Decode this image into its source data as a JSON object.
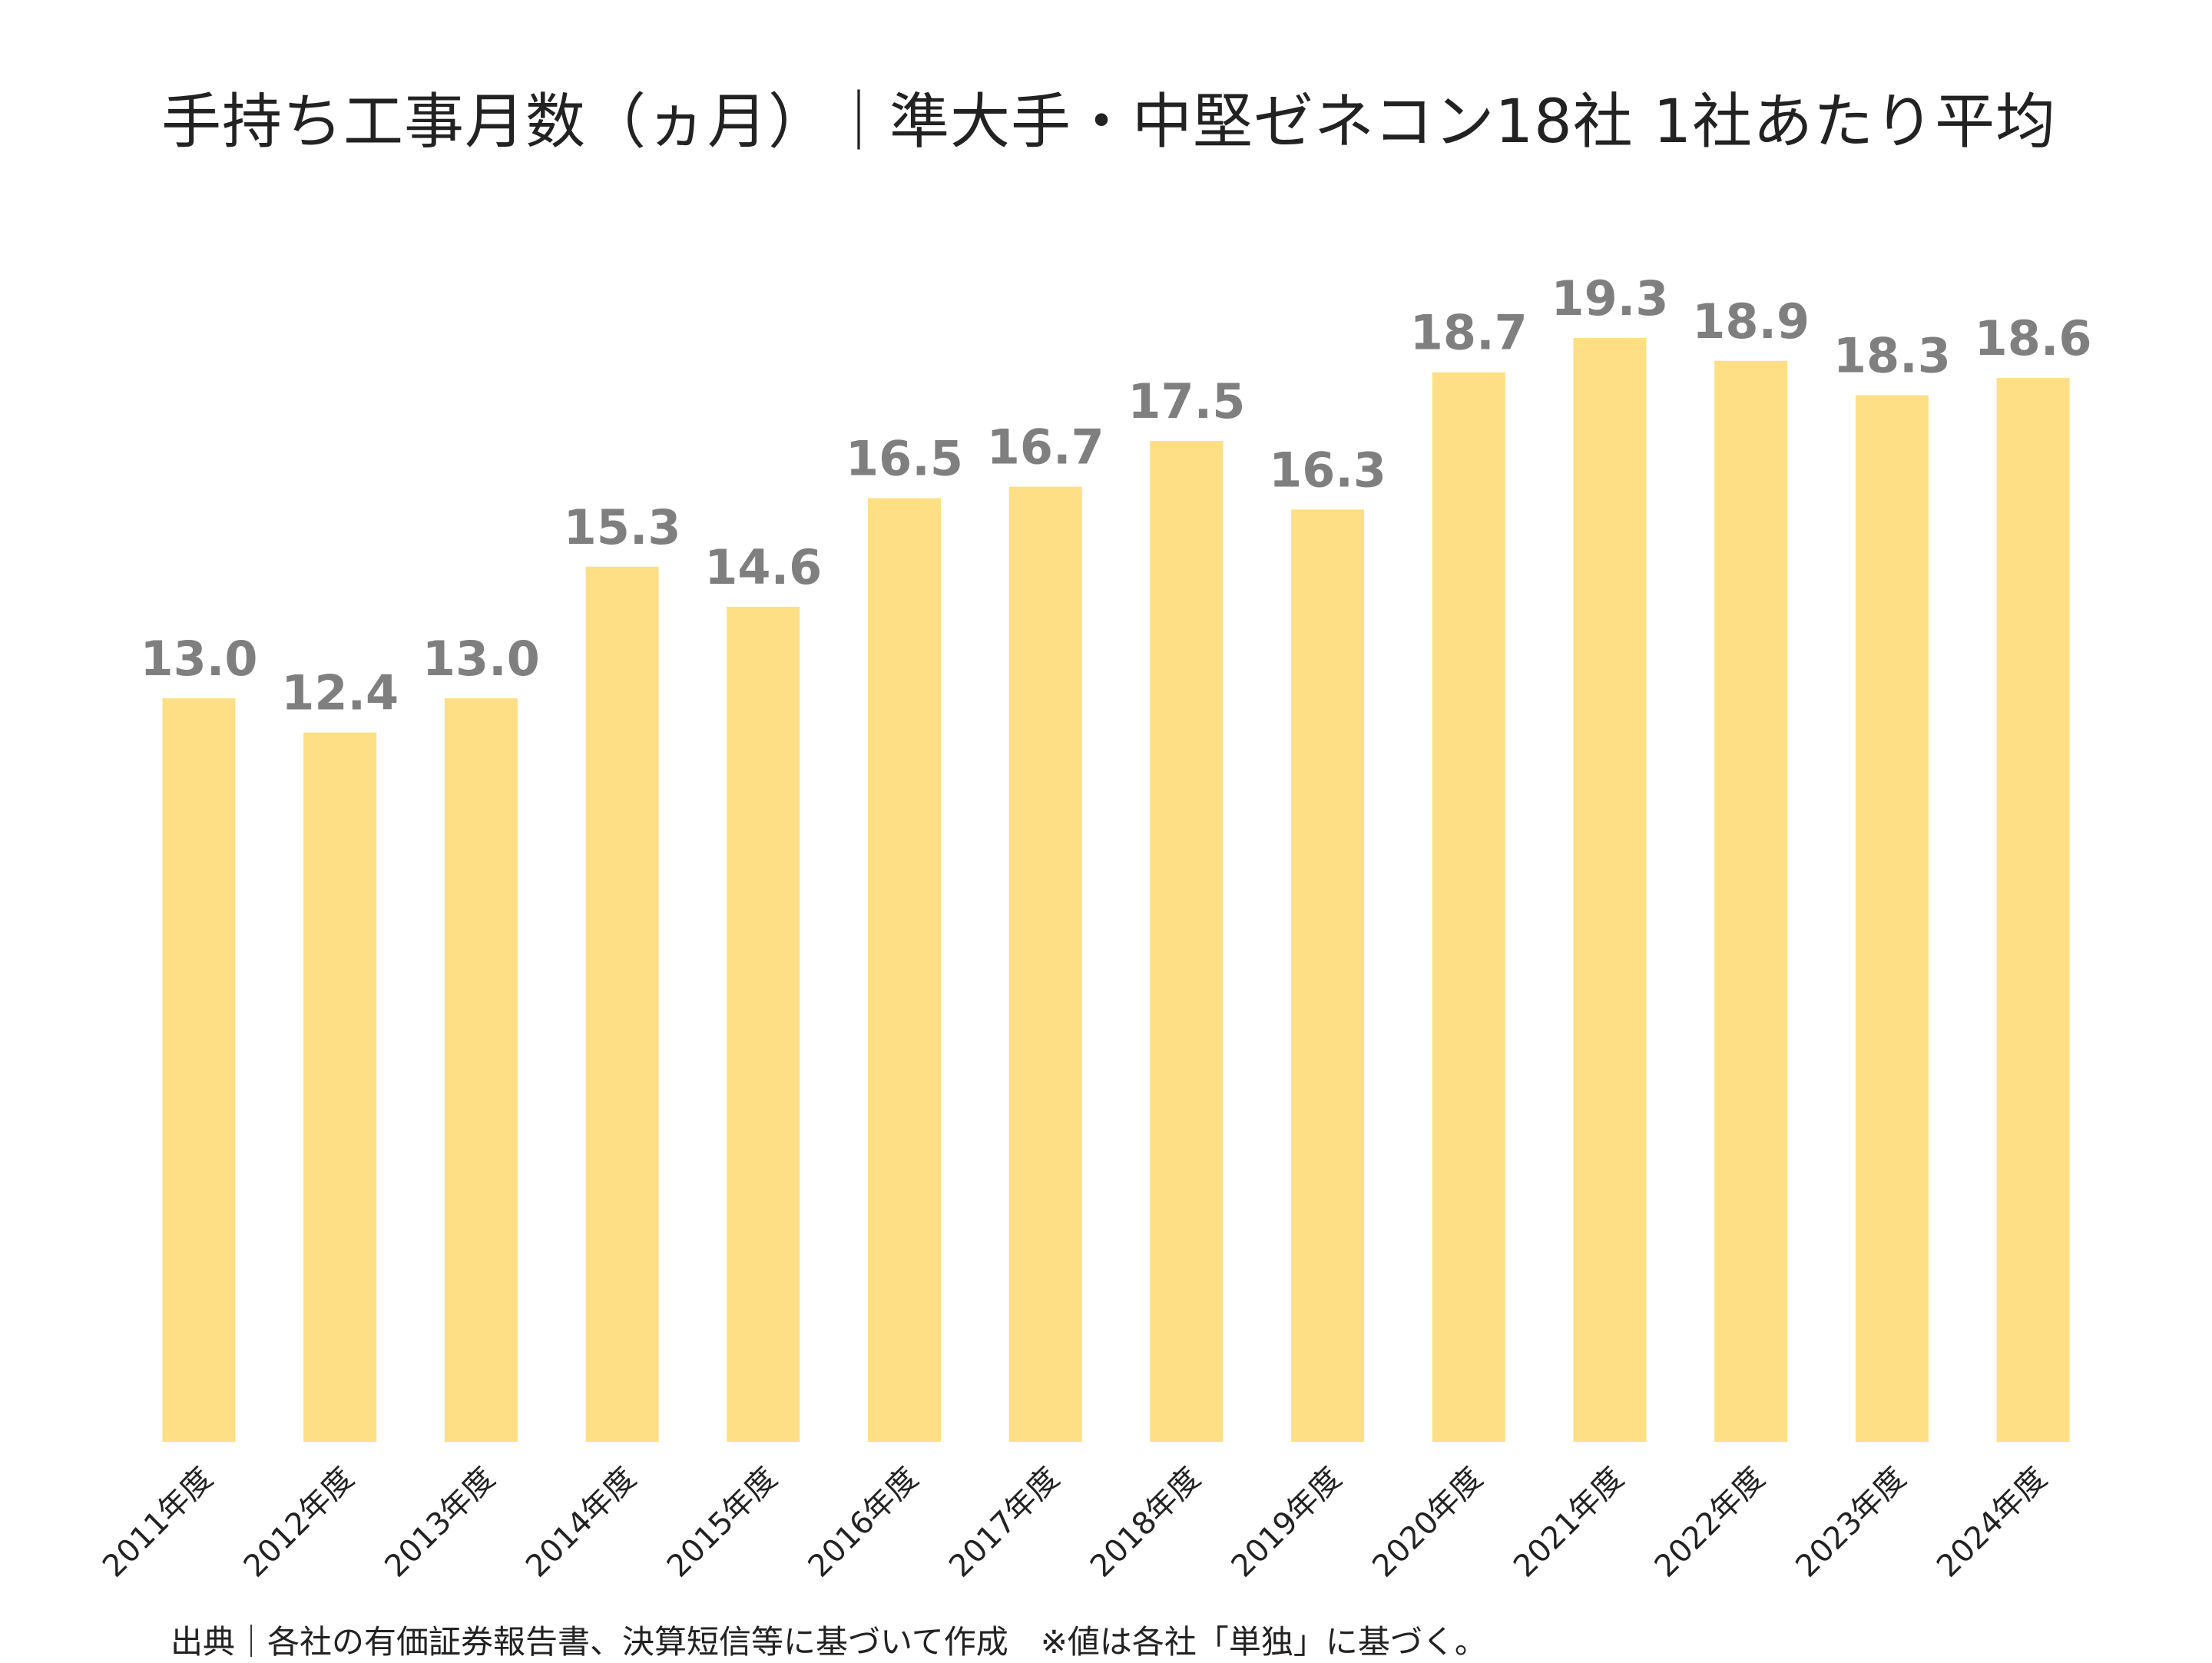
{
  "chart_data": {
    "type": "bar",
    "title": "手持ち工事月数（ヵ月）｜準大手・中堅ゼネコン18社 1社あたり平均",
    "categories": [
      "2011年度",
      "2012年度",
      "2013年度",
      "2014年度",
      "2015年度",
      "2016年度",
      "2017年度",
      "2018年度",
      "2019年度",
      "2020年度",
      "2021年度",
      "2022年度",
      "2023年度",
      "2024年度"
    ],
    "values": [
      13.0,
      12.4,
      13.0,
      15.3,
      14.6,
      16.5,
      16.7,
      17.5,
      16.3,
      18.7,
      19.3,
      18.9,
      18.3,
      18.6
    ],
    "value_labels": [
      "13.0",
      "12.4",
      "13.0",
      "15.3",
      "14.6",
      "16.5",
      "16.7",
      "17.5",
      "16.3",
      "18.7",
      "19.3",
      "18.9",
      "18.3",
      "18.6"
    ],
    "xlabel": "",
    "ylabel": "",
    "ylim": [
      0,
      19.3
    ],
    "grid": false,
    "legend": "none",
    "colors": {
      "bar": "#FFDF85",
      "value_label": "#7F7F7F",
      "tick_label": "#222222"
    }
  },
  "source_note": "出典｜各社の有価証券報告書、決算短信等に基づいて作成　※値は各社「単独」に基づく。"
}
